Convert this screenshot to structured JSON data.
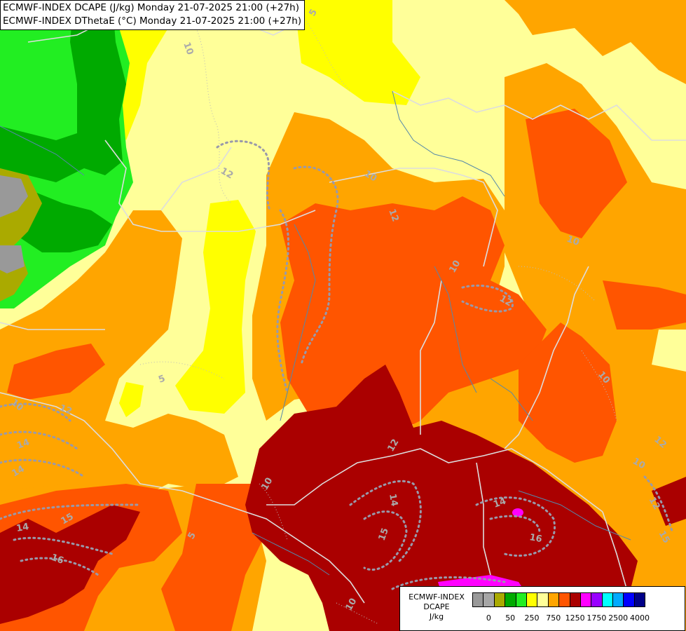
{
  "title": {
    "line1": "ECMWF-INDEX DCAPE (J/kg) Monday 21-07-2025 21:00 (+27h)",
    "line2": "ECMWF-INDEX DThetaE (°C) Monday 21-07-2025 21:00 (+27h)"
  },
  "legend": {
    "title_line1": "ECMWF-INDEX",
    "title_line2": "DCAPE",
    "units": "J/kg",
    "colors": [
      "#999999",
      "#a6a6a6",
      "#aaaa00",
      "#00aa00",
      "#22ee22",
      "#ffff00",
      "#ffff99",
      "#ffa500",
      "#ff5500",
      "#aa0000",
      "#ff00ff",
      "#9900ff",
      "#00ffff",
      "#00aaff",
      "#0000ff",
      "#000088"
    ],
    "tick_labels": [
      "0",
      "50",
      "250",
      "750",
      "1250",
      "1750",
      "2500",
      "4000"
    ]
  },
  "contour_labels": [
    "5",
    "10",
    "10",
    "12",
    "10",
    "12",
    "10",
    "10",
    "12",
    "14",
    "14",
    "16",
    "15",
    "12",
    "14",
    "15",
    "14",
    "16",
    "12",
    "10",
    "10",
    "5",
    "5",
    "12",
    "10",
    "14",
    "12",
    "15",
    "10"
  ]
}
